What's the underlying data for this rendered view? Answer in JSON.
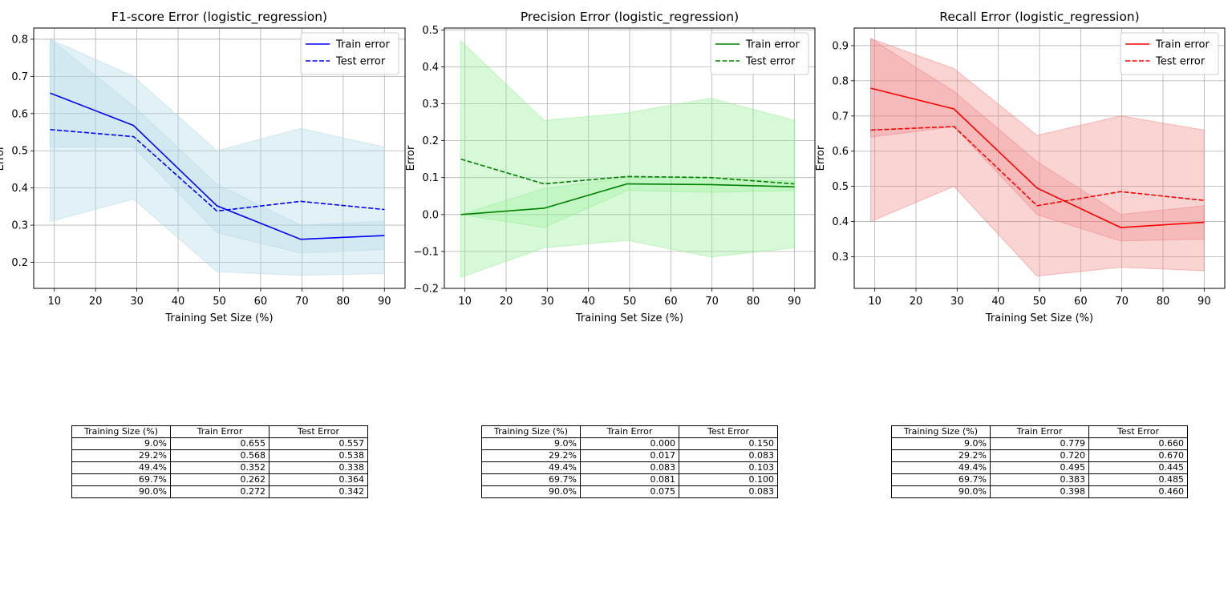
{
  "chart_data": [
    {
      "type": "line",
      "title": "F1-score Error (logistic_regression)",
      "xlabel": "Training Set Size (%)",
      "ylabel": "Error",
      "xlim": [
        5,
        95
      ],
      "ylim": [
        0.13,
        0.83
      ],
      "xticks": [
        10,
        20,
        30,
        40,
        50,
        60,
        70,
        80,
        90
      ],
      "yticks": [
        0.2,
        0.3,
        0.4,
        0.5,
        0.6,
        0.7,
        0.8
      ],
      "grid": true,
      "legend_position": "top-right",
      "color": "#0000ff",
      "band_color": "#add8e6",
      "x": [
        9.0,
        29.2,
        49.4,
        69.7,
        90.0
      ],
      "series": [
        {
          "name": "Train error",
          "style": "solid",
          "values": [
            0.655,
            0.568,
            0.352,
            0.262,
            0.272
          ],
          "lower": [
            0.51,
            0.51,
            0.28,
            0.225,
            0.235
          ],
          "upper": [
            0.8,
            0.62,
            0.41,
            0.3,
            0.31
          ]
        },
        {
          "name": "Test error",
          "style": "dashed",
          "values": [
            0.557,
            0.538,
            0.338,
            0.364,
            0.342
          ],
          "lower": [
            0.31,
            0.37,
            0.175,
            0.165,
            0.17
          ],
          "upper": [
            0.8,
            0.7,
            0.5,
            0.56,
            0.51
          ]
        }
      ],
      "table": {
        "columns": [
          "Training Size (%)",
          "Train Error",
          "Test Error"
        ],
        "rows": [
          [
            "9.0%",
            "0.655",
            "0.557"
          ],
          [
            "29.2%",
            "0.568",
            "0.538"
          ],
          [
            "49.4%",
            "0.352",
            "0.338"
          ],
          [
            "69.7%",
            "0.262",
            "0.364"
          ],
          [
            "90.0%",
            "0.272",
            "0.342"
          ]
        ]
      }
    },
    {
      "type": "line",
      "title": "Precision Error (logistic_regression)",
      "xlabel": "Training Set Size (%)",
      "ylabel": "Error",
      "xlim": [
        5,
        95
      ],
      "ylim": [
        -0.2,
        0.505
      ],
      "xticks": [
        10,
        20,
        30,
        40,
        50,
        60,
        70,
        80,
        90
      ],
      "yticks": [
        -0.2,
        -0.1,
        0.0,
        0.1,
        0.2,
        0.3,
        0.4,
        0.5
      ],
      "grid": true,
      "legend_position": "top-right",
      "color": "#008000",
      "band_color": "#90ee90",
      "x": [
        9.0,
        29.2,
        49.4,
        69.7,
        90.0
      ],
      "series": [
        {
          "name": "Train error",
          "style": "solid",
          "values": [
            0.0,
            0.017,
            0.083,
            0.081,
            0.075
          ],
          "lower": [
            0.0,
            -0.035,
            0.065,
            0.06,
            0.065
          ],
          "upper": [
            0.0,
            0.07,
            0.1,
            0.1,
            0.09
          ]
        },
        {
          "name": "Test error",
          "style": "dashed",
          "values": [
            0.15,
            0.083,
            0.103,
            0.1,
            0.083
          ],
          "lower": [
            -0.17,
            -0.09,
            -0.07,
            -0.115,
            -0.09
          ],
          "upper": [
            0.47,
            0.255,
            0.275,
            0.315,
            0.255
          ]
        }
      ],
      "table": {
        "columns": [
          "Training Size (%)",
          "Train Error",
          "Test Error"
        ],
        "rows": [
          [
            "9.0%",
            "0.000",
            "0.150"
          ],
          [
            "29.2%",
            "0.017",
            "0.083"
          ],
          [
            "49.4%",
            "0.083",
            "0.103"
          ],
          [
            "69.7%",
            "0.081",
            "0.100"
          ],
          [
            "90.0%",
            "0.075",
            "0.083"
          ]
        ]
      }
    },
    {
      "type": "line",
      "title": "Recall Error (logistic_regression)",
      "xlabel": "Training Set Size (%)",
      "ylabel": "Error",
      "xlim": [
        5,
        95
      ],
      "ylim": [
        0.21,
        0.95
      ],
      "xticks": [
        10,
        20,
        30,
        40,
        50,
        60,
        70,
        80,
        90
      ],
      "yticks": [
        0.3,
        0.4,
        0.5,
        0.6,
        0.7,
        0.8,
        0.9
      ],
      "grid": true,
      "legend_position": "top-right",
      "color": "#ff0000",
      "band_color": "#f08080",
      "x": [
        9.0,
        29.2,
        49.4,
        69.7,
        90.0
      ],
      "series": [
        {
          "name": "Train error",
          "style": "solid",
          "values": [
            0.779,
            0.72,
            0.495,
            0.383,
            0.398
          ],
          "lower": [
            0.64,
            0.67,
            0.42,
            0.345,
            0.35
          ],
          "upper": [
            0.92,
            0.77,
            0.57,
            0.42,
            0.445
          ]
        },
        {
          "name": "Test error",
          "style": "dashed",
          "values": [
            0.66,
            0.67,
            0.445,
            0.485,
            0.46
          ],
          "lower": [
            0.4,
            0.5,
            0.245,
            0.27,
            0.26
          ],
          "upper": [
            0.92,
            0.835,
            0.645,
            0.7,
            0.66
          ]
        }
      ],
      "table": {
        "columns": [
          "Training Size (%)",
          "Train Error",
          "Test Error"
        ],
        "rows": [
          [
            "9.0%",
            "0.779",
            "0.660"
          ],
          [
            "29.2%",
            "0.720",
            "0.670"
          ],
          [
            "49.4%",
            "0.495",
            "0.445"
          ],
          [
            "69.7%",
            "0.383",
            "0.485"
          ],
          [
            "90.0%",
            "0.398",
            "0.460"
          ]
        ]
      }
    }
  ]
}
